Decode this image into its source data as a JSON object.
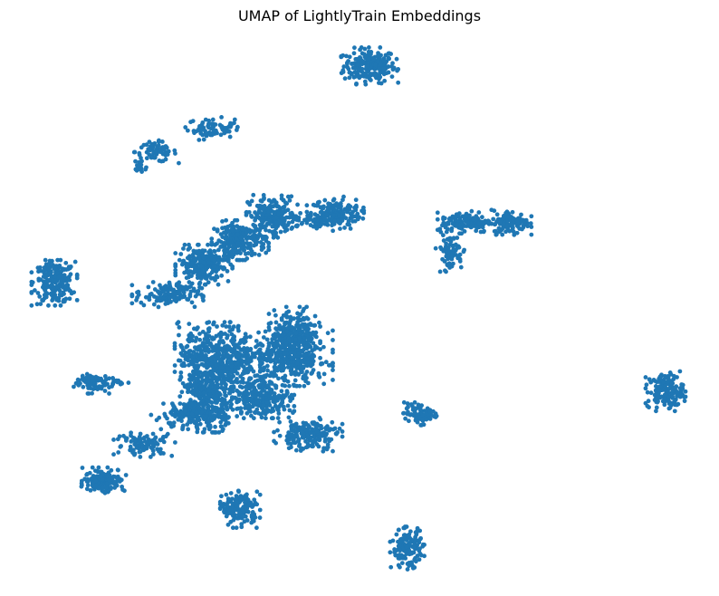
{
  "chart_data": {
    "type": "scatter",
    "title": "UMAP of LightlyTrain Embeddings",
    "xlabel": "",
    "ylabel": "",
    "axes_visible": false,
    "grid": false,
    "legend": "none",
    "color": "#1f77b4",
    "xlim": [
      0,
      10
    ],
    "ylim": [
      0,
      8
    ],
    "clusters": [
      {
        "x": 5.15,
        "y": 7.75,
        "sx": 0.2,
        "sy": 0.13,
        "n": 220
      },
      {
        "x": 2.7,
        "y": 6.78,
        "sx": 0.18,
        "sy": 0.08,
        "n": 60
      },
      {
        "x": 2.98,
        "y": 6.8,
        "sx": 0.08,
        "sy": 0.03,
        "n": 12
      },
      {
        "x": 1.85,
        "y": 6.42,
        "sx": 0.16,
        "sy": 0.08,
        "n": 70
      },
      {
        "x": 1.62,
        "y": 6.17,
        "sx": 0.07,
        "sy": 0.04,
        "n": 15
      },
      {
        "x": 0.28,
        "y": 4.39,
        "sx": 0.16,
        "sy": 0.16,
        "n": 220
      },
      {
        "x": 4.62,
        "y": 5.46,
        "sx": 0.2,
        "sy": 0.12,
        "n": 180
      },
      {
        "x": 4.13,
        "y": 5.38,
        "sx": 0.25,
        "sy": 0.05,
        "n": 60
      },
      {
        "x": 3.64,
        "y": 5.42,
        "sx": 0.18,
        "sy": 0.15,
        "n": 200
      },
      {
        "x": 3.15,
        "y": 5.05,
        "sx": 0.2,
        "sy": 0.14,
        "n": 220
      },
      {
        "x": 2.59,
        "y": 4.67,
        "sx": 0.2,
        "sy": 0.14,
        "n": 220
      },
      {
        "x": 2.03,
        "y": 4.21,
        "sx": 0.25,
        "sy": 0.09,
        "n": 140
      },
      {
        "x": 6.64,
        "y": 5.33,
        "sx": 0.2,
        "sy": 0.08,
        "n": 130
      },
      {
        "x": 7.34,
        "y": 5.33,
        "sx": 0.14,
        "sy": 0.09,
        "n": 120
      },
      {
        "x": 6.39,
        "y": 4.87,
        "sx": 0.1,
        "sy": 0.14,
        "n": 80
      },
      {
        "x": 9.72,
        "y": 2.71,
        "sx": 0.14,
        "sy": 0.14,
        "n": 150
      },
      {
        "x": 5.92,
        "y": 2.36,
        "sx": 0.12,
        "sy": 0.08,
        "n": 80
      },
      {
        "x": 0.84,
        "y": 2.85,
        "sx": 0.13,
        "sy": 0.08,
        "n": 70
      },
      {
        "x": 1.25,
        "y": 2.85,
        "sx": 0.1,
        "sy": 0.03,
        "n": 15
      },
      {
        "x": 2.8,
        "y": 3.23,
        "sx": 0.3,
        "sy": 0.25,
        "n": 500
      },
      {
        "x": 3.92,
        "y": 3.23,
        "sx": 0.3,
        "sy": 0.2,
        "n": 400
      },
      {
        "x": 3.99,
        "y": 3.62,
        "sx": 0.18,
        "sy": 0.18,
        "n": 200
      },
      {
        "x": 2.66,
        "y": 2.6,
        "sx": 0.2,
        "sy": 0.24,
        "n": 300
      },
      {
        "x": 3.5,
        "y": 2.6,
        "sx": 0.22,
        "sy": 0.14,
        "n": 250
      },
      {
        "x": 4.2,
        "y": 2.04,
        "sx": 0.24,
        "sy": 0.12,
        "n": 180
      },
      {
        "x": 2.38,
        "y": 2.32,
        "sx": 0.28,
        "sy": 0.09,
        "n": 150
      },
      {
        "x": 1.68,
        "y": 1.89,
        "sx": 0.22,
        "sy": 0.09,
        "n": 100
      },
      {
        "x": 1.05,
        "y": 1.33,
        "sx": 0.16,
        "sy": 0.09,
        "n": 140
      },
      {
        "x": 3.15,
        "y": 0.88,
        "sx": 0.14,
        "sy": 0.13,
        "n": 150
      },
      {
        "x": 5.73,
        "y": 0.28,
        "sx": 0.12,
        "sy": 0.15,
        "n": 150
      }
    ]
  }
}
